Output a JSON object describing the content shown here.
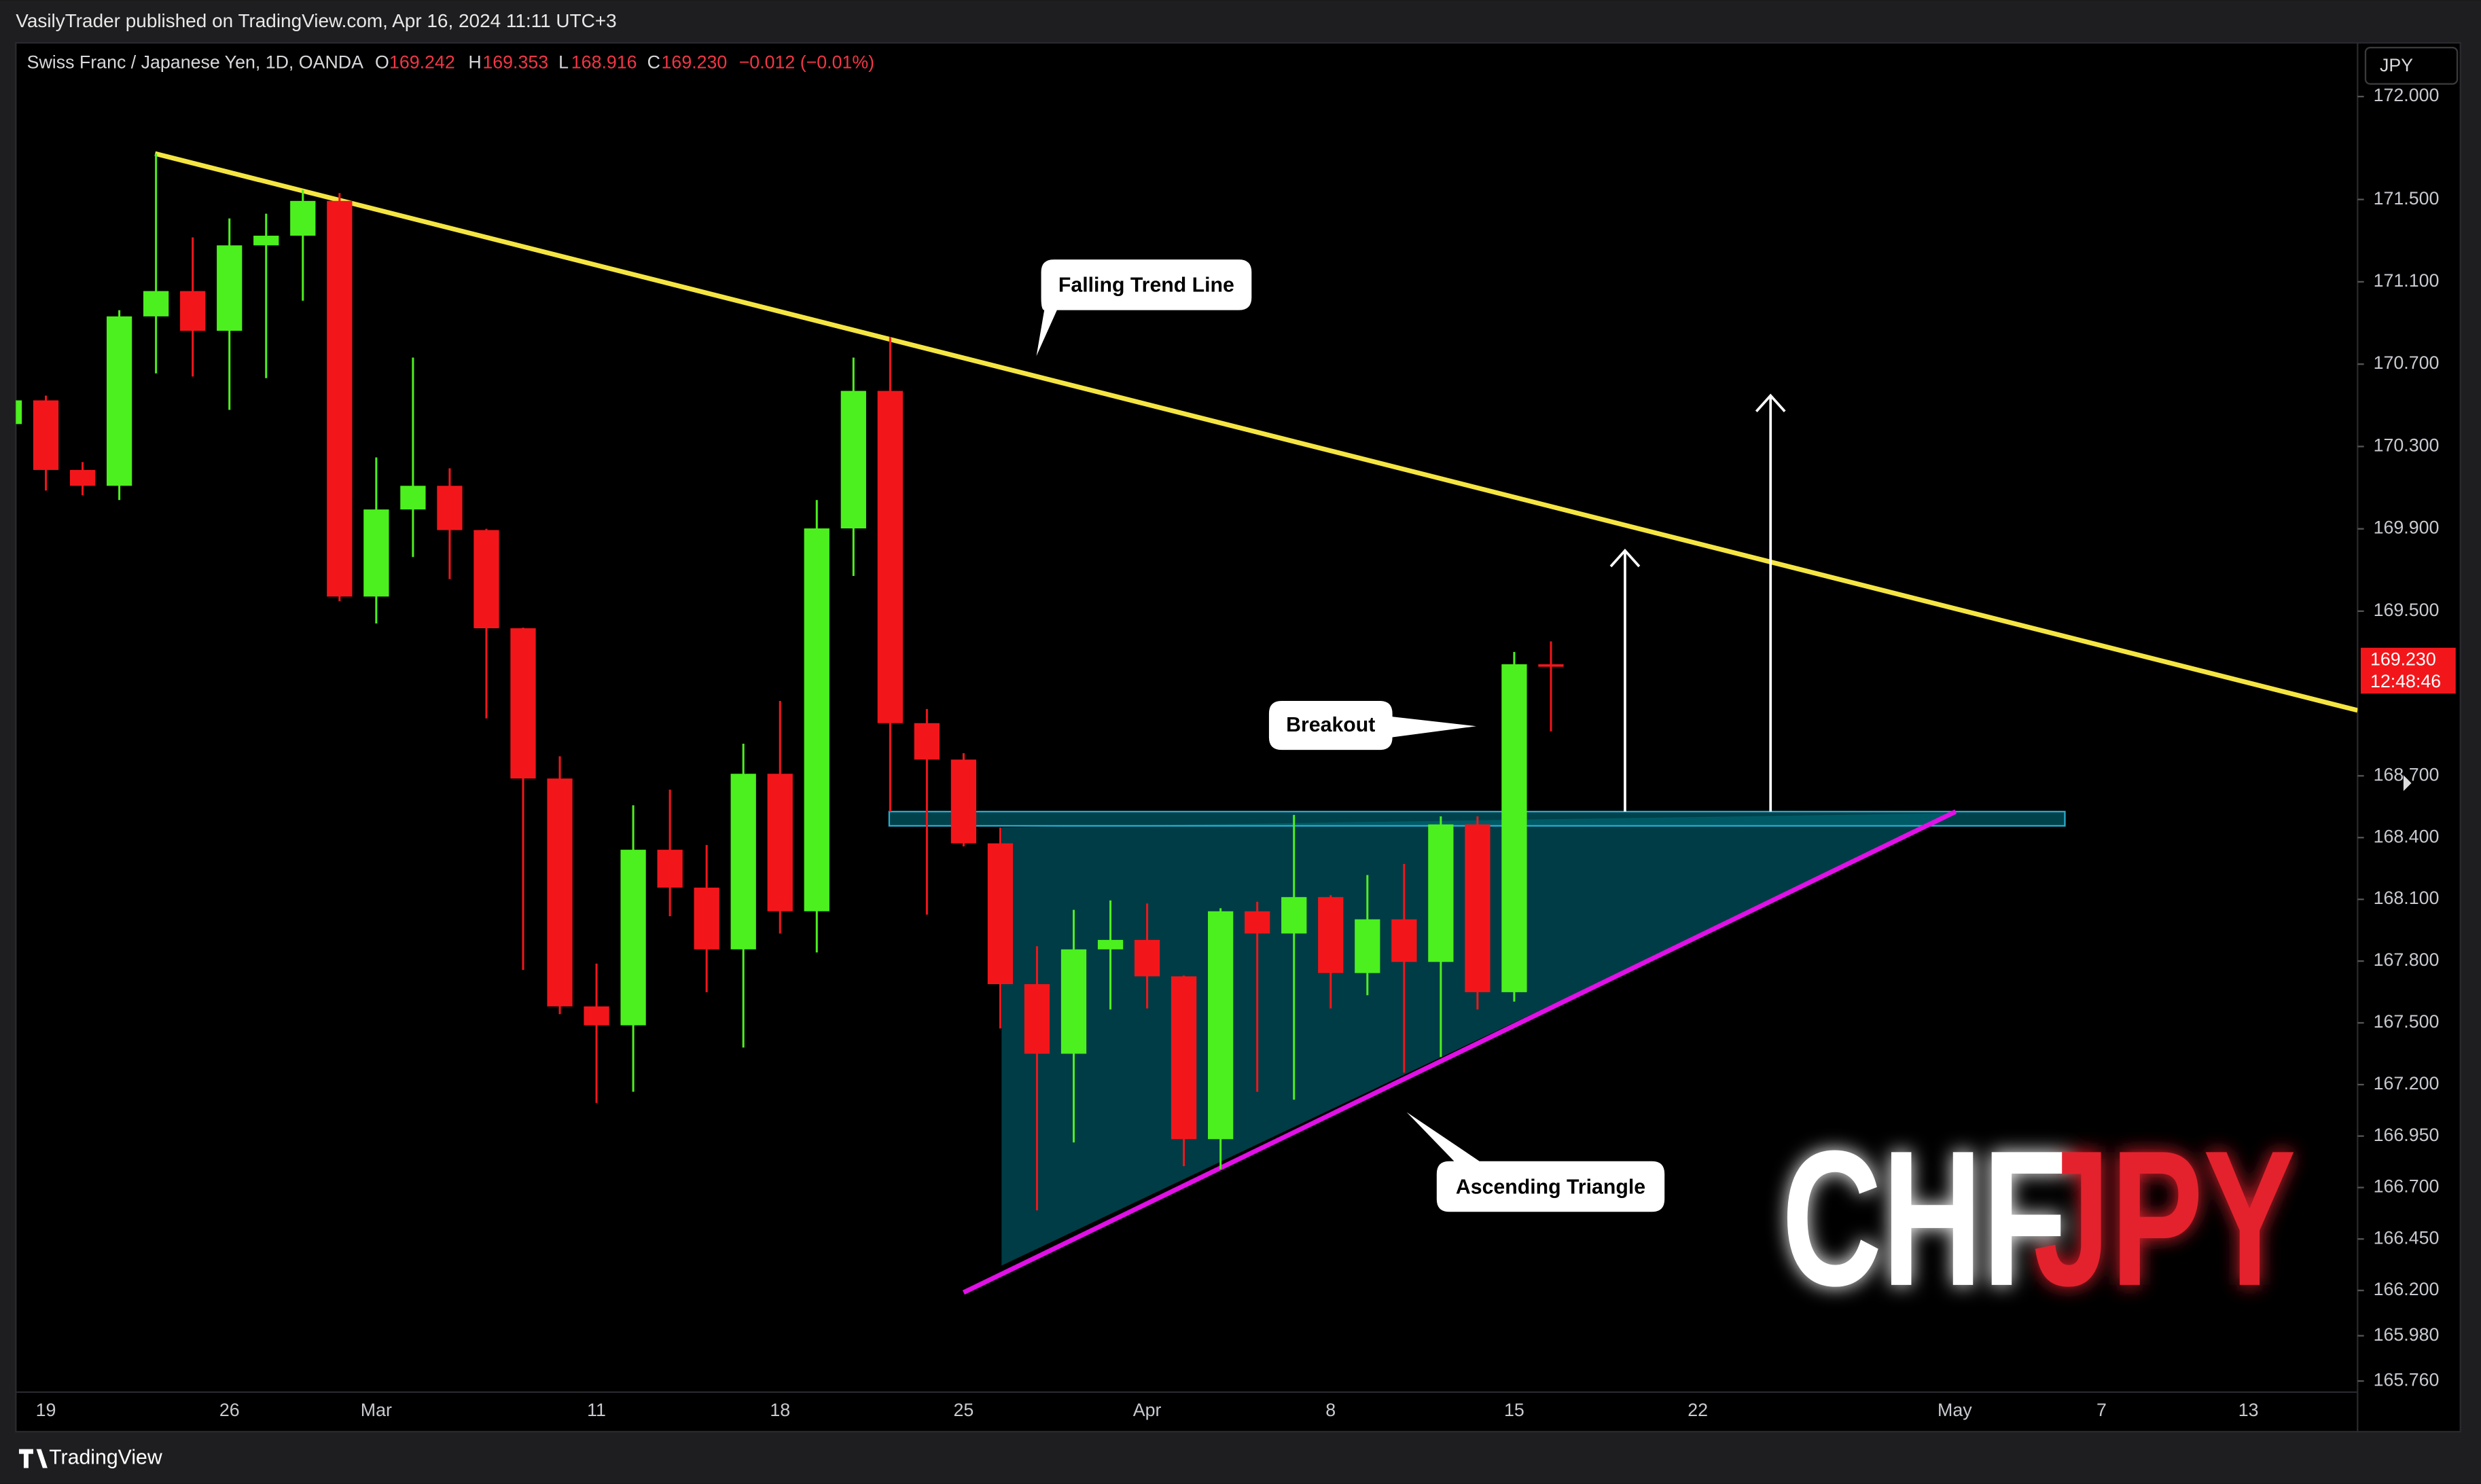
{
  "header": {
    "byline": "VasilyTrader published on TradingView.com, Apr 16, 2024 11:11 UTC+3"
  },
  "chart_data": {
    "type": "candlestick",
    "symbol": "Swiss Franc / Japanese Yen, 1D, OANDA",
    "legend": [
      {
        "label": "O",
        "value": "169.242"
      },
      {
        "label": "H",
        "value": "169.353"
      },
      {
        "label": "L",
        "value": "168.916"
      },
      {
        "label": "C",
        "value": "169.230"
      }
    ],
    "change": "−0.012 (−0.01%)",
    "currency": "JPY",
    "categories": [
      null,
      "19",
      null,
      null,
      null,
      null,
      "26",
      null,
      null,
      null,
      "Mar",
      null,
      null,
      null,
      null,
      null,
      "11",
      null,
      null,
      null,
      null,
      "18",
      null,
      null,
      null,
      null,
      "25",
      null,
      null,
      null,
      null,
      "Apr",
      null,
      null,
      null,
      null,
      "8",
      null,
      null,
      null,
      null,
      "15",
      null,
      null,
      null,
      null,
      "22",
      null,
      null,
      null,
      null,
      null,
      null,
      "May",
      null,
      null,
      null,
      "7",
      null,
      null,
      null,
      "13",
      null,
      null,
      null
    ],
    "open": [
      170.409,
      170.524,
      170.186,
      170.109,
      170.932,
      171.055,
      170.862,
      171.277,
      171.324,
      171.493,
      169.571,
      169.994,
      170.109,
      169.894,
      169.417,
      168.687,
      167.58,
      167.488,
      168.341,
      168.157,
      167.857,
      168.71,
      168.042,
      169.902,
      170.57,
      168.956,
      168.779,
      168.372,
      167.688,
      167.35,
      167.857,
      167.903,
      167.726,
      166.935,
      168.042,
      167.934,
      168.111,
      167.742,
      168.003,
      167.796,
      168.464,
      167.649,
      169.242,
      null,
      null,
      null,
      null,
      null,
      null,
      null,
      null,
      null,
      null,
      null,
      null,
      null,
      null,
      null,
      null,
      null,
      null,
      null,
      null,
      null,
      null
    ],
    "high": [
      170.55,
      170.547,
      170.224,
      170.962,
      171.723,
      171.316,
      171.408,
      171.431,
      171.547,
      171.531,
      170.247,
      170.732,
      170.194,
      169.9,
      169.42,
      168.795,
      167.788,
      168.557,
      168.633,
      168.364,
      168.856,
      169.064,
      170.04,
      170.732,
      170.832,
      169.025,
      168.81,
      168.449,
      167.872,
      168.049,
      168.095,
      168.08,
      167.73,
      168.057,
      168.088,
      168.51,
      168.12,
      168.218,
      168.272,
      168.503,
      168.503,
      169.302,
      169.353,
      null,
      null,
      null,
      null,
      null,
      null,
      null,
      null,
      null,
      null,
      null,
      null,
      null,
      null,
      null,
      null,
      null,
      null,
      null,
      null,
      null,
      null
    ],
    "low": [
      170.38,
      170.086,
      170.063,
      170.04,
      170.655,
      170.64,
      170.478,
      170.632,
      171.008,
      169.548,
      169.44,
      169.763,
      169.656,
      168.979,
      167.757,
      167.542,
      167.111,
      167.165,
      168.018,
      167.649,
      167.38,
      167.934,
      167.842,
      169.671,
      168.526,
      168.026,
      168.357,
      167.473,
      166.589,
      166.919,
      167.565,
      167.57,
      166.804,
      166.789,
      167.165,
      167.127,
      167.57,
      167.634,
      167.258,
      167.334,
      167.565,
      167.603,
      168.916,
      null,
      null,
      null,
      null,
      null,
      null,
      null,
      null,
      null,
      null,
      null,
      null,
      null,
      null,
      null,
      null,
      null,
      null,
      null,
      null,
      null,
      null
    ],
    "close": [
      170.524,
      170.186,
      170.109,
      170.932,
      171.055,
      170.862,
      171.277,
      171.324,
      171.493,
      169.571,
      169.994,
      170.109,
      169.894,
      169.417,
      168.687,
      167.58,
      167.488,
      168.341,
      168.157,
      167.857,
      168.71,
      168.042,
      169.902,
      170.57,
      168.956,
      168.779,
      168.372,
      167.688,
      167.35,
      167.857,
      167.903,
      167.726,
      166.935,
      168.042,
      167.934,
      168.111,
      167.742,
      168.003,
      167.796,
      168.464,
      167.649,
      169.242,
      169.23,
      null,
      null,
      null,
      null,
      null,
      null,
      null,
      null,
      null,
      null,
      null,
      null,
      null,
      null,
      null,
      null,
      null,
      null,
      null,
      null,
      null,
      null
    ],
    "up_color": "#4cf01e",
    "down_color": "#f2161b",
    "ylim": [
      165.706,
      172.261
    ],
    "yticks": [
      {
        "value": 172,
        "label": "172.000"
      },
      {
        "value": 171.5,
        "label": "171.500"
      },
      {
        "value": 171.1,
        "label": "171.100"
      },
      {
        "value": 170.7,
        "label": "170.700"
      },
      {
        "value": 170.3,
        "label": "170.300"
      },
      {
        "value": 169.9,
        "label": "169.900"
      },
      {
        "value": 169.5,
        "label": "169.500"
      },
      {
        "value": 168.7,
        "label": "168.700"
      },
      {
        "value": 168.4,
        "label": "168.400"
      },
      {
        "value": 168.1,
        "label": "168.100"
      },
      {
        "value": 167.8,
        "label": "167.800"
      },
      {
        "value": 167.5,
        "label": "167.500"
      },
      {
        "value": 167.2,
        "label": "167.200"
      },
      {
        "value": 166.95,
        "label": "166.950"
      },
      {
        "value": 166.7,
        "label": "166.700"
      },
      {
        "value": 166.45,
        "label": "166.450"
      },
      {
        "value": 166.2,
        "label": "166.200"
      },
      {
        "value": 165.98,
        "label": "165.980"
      },
      {
        "value": 165.76,
        "label": "165.760"
      }
    ],
    "grid": false,
    "last_price": {
      "value": 169.23,
      "label": "169.230"
    },
    "countdown": "12:48:46",
    "annotations": [
      "Falling Trend Line",
      "Breakout",
      "Ascending Triangle"
    ],
    "watermark": [
      "CHF",
      "JPY"
    ]
  },
  "footer": {
    "brand": "TradingView"
  }
}
